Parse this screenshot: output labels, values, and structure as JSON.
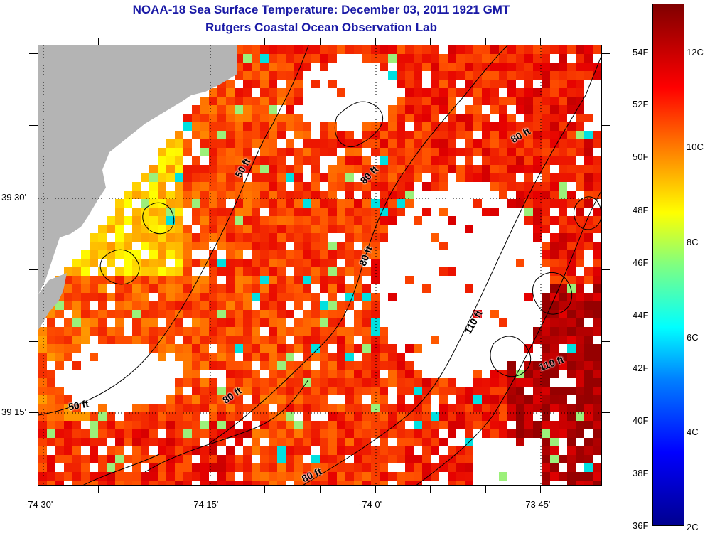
{
  "title_line1": "NOAA-18 Sea Surface Temperature:  December 03, 2011 1921 GMT",
  "title_line2": "Rutgers Coastal Ocean Observation Lab",
  "x_tick_labels": [
    "-74 30'",
    "-74 15'",
    "-74 0'",
    "-73 45'"
  ],
  "y_tick_labels": [
    "39 30'",
    "39 15'"
  ],
  "contour_labels": [
    "50 ft",
    "80 ft",
    "80 ft",
    "80 ft",
    "80 ft",
    "110 ft",
    "110 ft",
    "50 ft",
    "80 ft"
  ],
  "colorbar": {
    "fahrenheit_labels": [
      "54F",
      "52F",
      "50F",
      "48F",
      "46F",
      "44F",
      "42F",
      "40F",
      "38F",
      "36F"
    ],
    "celsius_labels": [
      "12C",
      "10C",
      "8C",
      "6C",
      "4C",
      "2C"
    ],
    "range_celsius": [
      2,
      13.2
    ]
  },
  "colors": {
    "title": "#1a1aa6",
    "land": "#b4b4b4",
    "no_data": "#ffffff"
  }
}
